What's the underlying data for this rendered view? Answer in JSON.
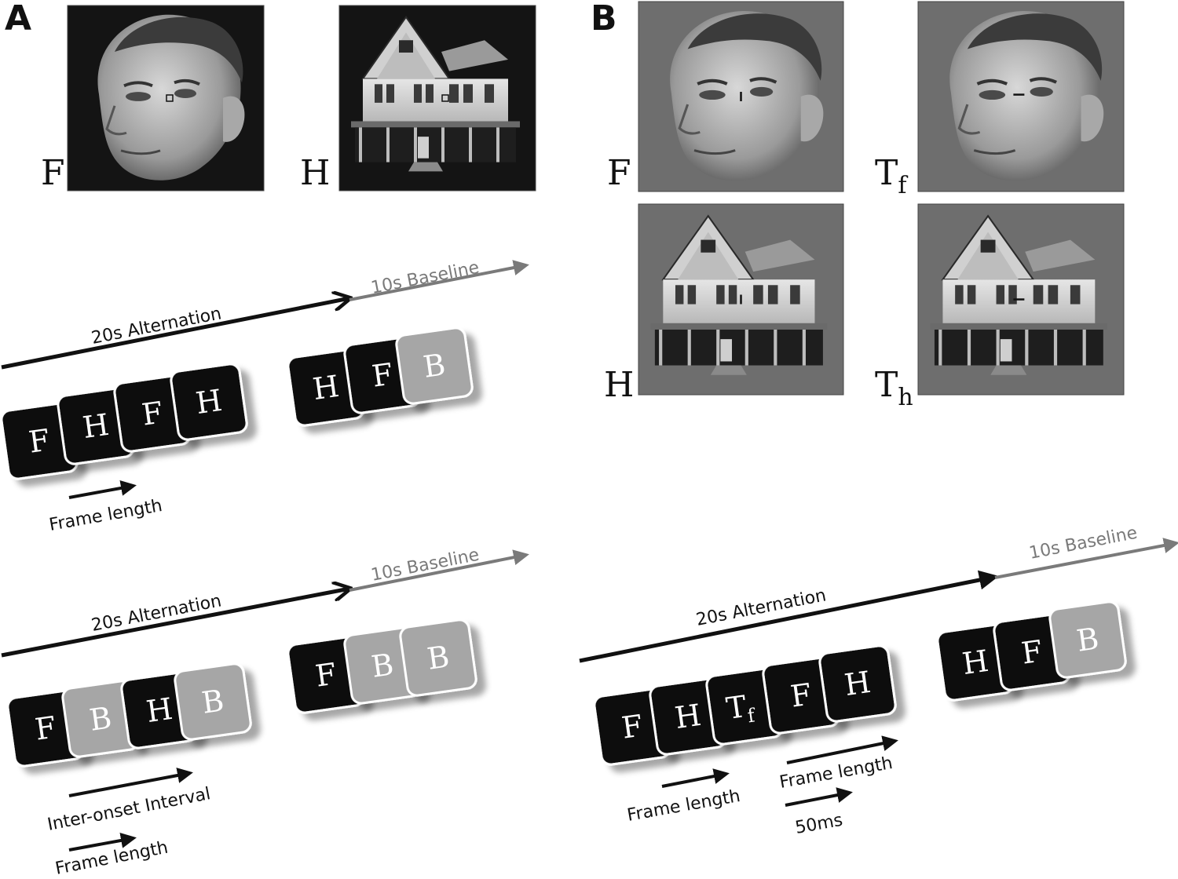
{
  "panels": {
    "a": {
      "letter": "A"
    },
    "b": {
      "letter": "B"
    }
  },
  "images": {
    "a_face": {
      "label": "F"
    },
    "a_house": {
      "label": "H"
    },
    "b_face": {
      "label": "F"
    },
    "b_face_target": {
      "label": "T",
      "sub": "f"
    },
    "b_house": {
      "label": "H"
    },
    "b_house_target": {
      "label": "T",
      "sub": "h"
    }
  },
  "timelines": {
    "a1": {
      "alternation_label": "20s Alternation",
      "baseline_label": "10s Baseline",
      "frames": [
        "F",
        "H",
        "F",
        "H"
      ],
      "end_frames": [
        "H",
        "F",
        "B"
      ],
      "annotations": [
        "Frame length"
      ]
    },
    "a2": {
      "alternation_label": "20s Alternation",
      "baseline_label": "10s Baseline",
      "frames": [
        "F",
        "B",
        "H",
        "B"
      ],
      "end_frames": [
        "F",
        "B",
        "B"
      ],
      "annotations": [
        "Inter-onset Interval",
        "Frame length"
      ]
    },
    "b": {
      "alternation_label": "20s Alternation",
      "baseline_label": "10s Baseline",
      "frames": [
        {
          "label": "F",
          "sub": ""
        },
        {
          "label": "H",
          "sub": ""
        },
        {
          "label": "T",
          "sub": "f"
        },
        {
          "label": "F",
          "sub": ""
        },
        {
          "label": "H",
          "sub": ""
        }
      ],
      "end_frames": [
        "H",
        "F",
        "B"
      ],
      "annotations": [
        "Frame length",
        "Frame length",
        "50ms"
      ]
    }
  },
  "colors": {
    "black_frame": "#0a0a0a",
    "baseline_frame": "#a6a6a6",
    "baseline_arrow": "#7a7a7a",
    "photo_bg_a": "#141414",
    "photo_bg_b": "#6e6e6e"
  }
}
